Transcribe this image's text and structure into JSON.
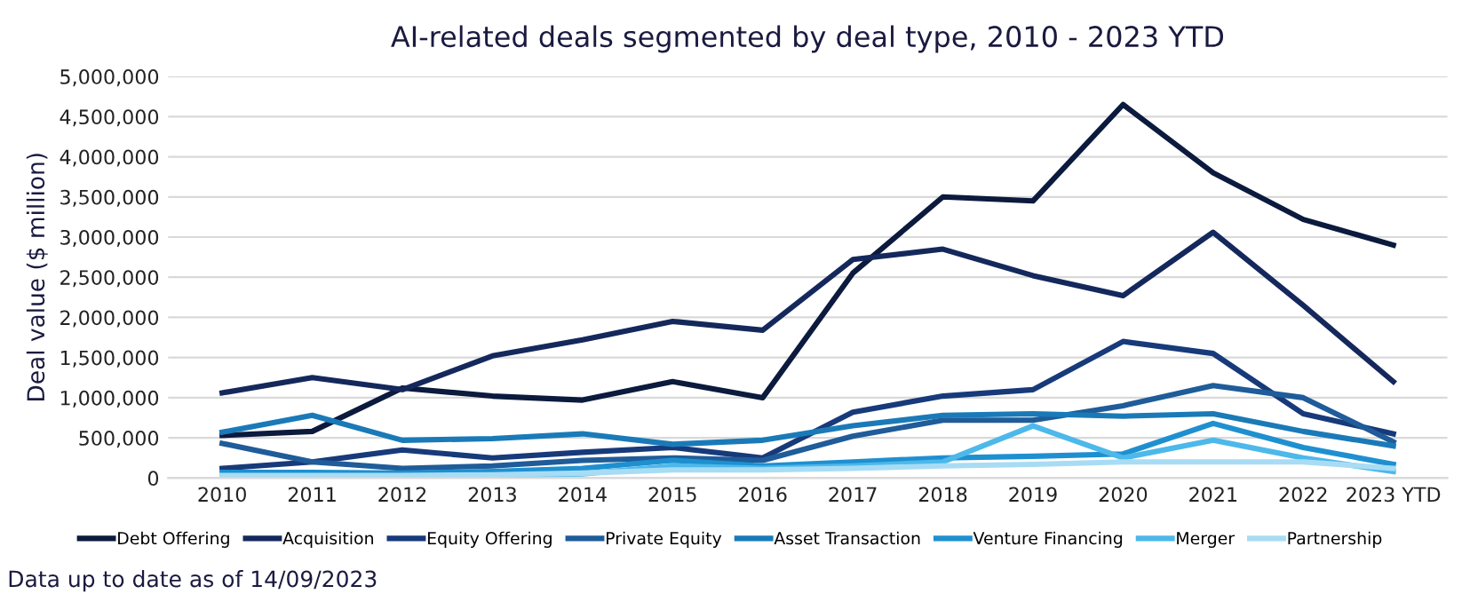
{
  "chart_data": {
    "type": "line",
    "title": "AI-related deals segmented by deal type, 2010 - 2023 YTD",
    "ylabel": "Deal value ($ million)",
    "categories": [
      "2010",
      "2011",
      "2012",
      "2013",
      "2014",
      "2015",
      "2016",
      "2017",
      "2018",
      "2019",
      "2020",
      "2021",
      "2022",
      "2023 YTD"
    ],
    "series": [
      {
        "name": "Debt Offering",
        "color": "#0b1a3d",
        "values": [
          530000,
          580000,
          1120000,
          1020000,
          970000,
          1200000,
          1000000,
          2550000,
          3500000,
          3450000,
          4650000,
          3800000,
          3220000,
          2900000
        ]
      },
      {
        "name": "Acquisition",
        "color": "#14285c",
        "values": [
          1060000,
          1250000,
          1100000,
          1520000,
          1720000,
          1950000,
          1840000,
          2720000,
          2850000,
          2520000,
          2270000,
          3060000,
          2150000,
          1200000
        ]
      },
      {
        "name": "Equity Offering",
        "color": "#173a7a",
        "values": [
          120000,
          200000,
          350000,
          250000,
          320000,
          380000,
          250000,
          820000,
          1020000,
          1100000,
          1700000,
          1550000,
          800000,
          550000
        ]
      },
      {
        "name": "Private Equity",
        "color": "#1f5c99",
        "values": [
          430000,
          200000,
          120000,
          150000,
          220000,
          250000,
          220000,
          520000,
          720000,
          720000,
          900000,
          1150000,
          1000000,
          450000
        ]
      },
      {
        "name": "Asset Transaction",
        "color": "#1a7ab8",
        "values": [
          570000,
          780000,
          470000,
          490000,
          550000,
          420000,
          470000,
          650000,
          780000,
          800000,
          770000,
          800000,
          580000,
          400000
        ]
      },
      {
        "name": "Venture Financing",
        "color": "#1e90d0",
        "values": [
          70000,
          70000,
          60000,
          80000,
          120000,
          220000,
          150000,
          200000,
          250000,
          270000,
          300000,
          680000,
          380000,
          170000
        ]
      },
      {
        "name": "Merger",
        "color": "#4db8ea",
        "values": [
          20000,
          20000,
          20000,
          30000,
          50000,
          150000,
          120000,
          150000,
          200000,
          650000,
          250000,
          470000,
          250000,
          80000
        ]
      },
      {
        "name": "Partnership",
        "color": "#a8dcf5",
        "values": [
          30000,
          30000,
          30000,
          40000,
          60000,
          100000,
          100000,
          120000,
          150000,
          170000,
          200000,
          200000,
          200000,
          120000
        ]
      }
    ],
    "ylim": [
      0,
      5000000
    ],
    "yticks": [
      {
        "value": 0,
        "label": "0"
      },
      {
        "value": 500000,
        "label": "500,000"
      },
      {
        "value": 1000000,
        "label": "1,000,000"
      },
      {
        "value": 1500000,
        "label": "1,500,000"
      },
      {
        "value": 2000000,
        "label": "2,000,000"
      },
      {
        "value": 2500000,
        "label": "2,500,000"
      },
      {
        "value": 3000000,
        "label": "3,000,000"
      },
      {
        "value": 3500000,
        "label": "3,500,000"
      },
      {
        "value": 4000000,
        "label": "4,000,000"
      },
      {
        "value": 4500000,
        "label": "4,500,000"
      },
      {
        "value": 5000000,
        "label": "5,000,000"
      }
    ],
    "grid": "y",
    "legend": "bottom",
    "marker": "none",
    "line_style": "solid",
    "annotations": [
      "Data up to date as of 14/09/2023"
    ]
  }
}
